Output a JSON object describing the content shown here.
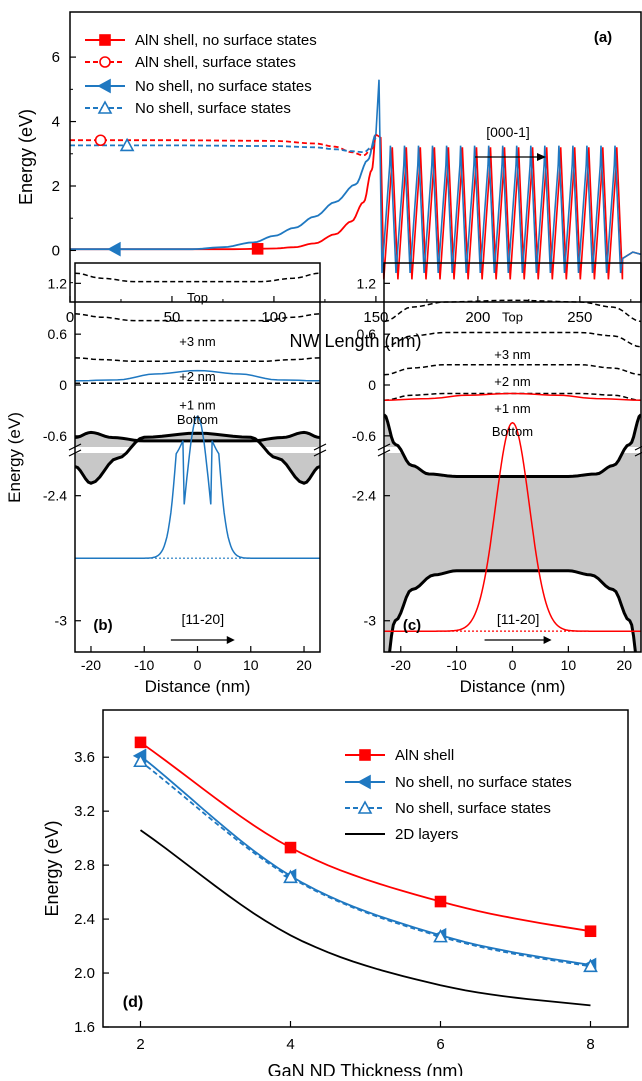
{
  "chart_data": [
    {
      "panel": "(a)",
      "type": "line",
      "xlabel": "NW Length (nm)",
      "ylabel": "Energy (eV)",
      "xlim": [
        0,
        280
      ],
      "ylim": [
        -1.6,
        7.4
      ],
      "xticks": [
        0,
        50,
        100,
        150,
        200,
        250
      ],
      "yticks": [
        0,
        2,
        4,
        6
      ],
      "annotation": "[000-1]",
      "legend_position": "top-left",
      "series": [
        {
          "name": "AlN shell, no surface states",
          "color": "#ff0000",
          "dash": "solid",
          "marker": "square",
          "x": [
            0,
            40,
            80,
            100,
            110,
            120,
            130,
            138,
            144,
            148,
            150
          ],
          "y": [
            0.04,
            0.04,
            0.04,
            0.06,
            0.1,
            0.22,
            0.5,
            0.9,
            1.5,
            2.5,
            3.6
          ]
        },
        {
          "name": "AlN shell, surface states",
          "color": "#ff0000",
          "dash": "dashed",
          "marker": "circle",
          "x": [
            0,
            50,
            100,
            120,
            130,
            138,
            144,
            148,
            150
          ],
          "y": [
            3.42,
            3.42,
            3.4,
            3.32,
            3.22,
            3.05,
            2.95,
            3.15,
            3.5
          ]
        },
        {
          "name": "No shell, no surface states",
          "color": "#1f78c1",
          "dash": "solid",
          "marker": "triangle-left",
          "x": [
            0,
            60,
            75,
            90,
            100,
            110,
            120,
            130,
            140,
            146,
            150
          ],
          "y": [
            0.04,
            0.04,
            0.1,
            0.25,
            0.45,
            0.7,
            1.05,
            1.5,
            2.05,
            2.8,
            3.6
          ]
        },
        {
          "name": "No shell, surface states",
          "color": "#1f78c1",
          "dash": "dashed",
          "marker": "triangle-up",
          "x": [
            0,
            50,
            100,
            120,
            130,
            138,
            144,
            148,
            150
          ],
          "y": [
            3.26,
            3.26,
            3.24,
            3.2,
            3.14,
            3.08,
            3.05,
            3.2,
            3.5
          ]
        }
      ],
      "superlattice": {
        "x_start": 151,
        "x_end": 268,
        "periods": 17,
        "peak_blue": 3.25,
        "trough_blue": -0.7,
        "peak_red": 3.2,
        "trough_red": -0.9,
        "spike": 5.3
      }
    },
    {
      "panel": "(b)",
      "type": "line",
      "xlabel": "Distance (nm)",
      "ylabel": "Energy (eV)",
      "xlim": [
        -23,
        23
      ],
      "xticks": [
        -20,
        -10,
        0,
        10,
        20
      ],
      "yticks_upper": [
        -0.6,
        0.0,
        0.6,
        1.2
      ],
      "yticks_lower": [
        -2.4,
        -3.0
      ],
      "curve_labels": [
        "Top",
        "+3 nm",
        "+2 nm",
        "+1 nm",
        "Bottom"
      ],
      "annotation": "[11-20]",
      "series": [
        {
          "name": "Top",
          "color": "#000000",
          "dash": "dashed",
          "x": [
            -23,
            -18,
            -12,
            0,
            12,
            18,
            23
          ],
          "y": [
            1.32,
            1.26,
            1.22,
            1.22,
            1.22,
            1.26,
            1.32
          ]
        },
        {
          "name": "+3 nm",
          "color": "#000000",
          "dash": "dashed",
          "x": [
            -23,
            -18,
            -12,
            0,
            12,
            18,
            23
          ],
          "y": [
            0.84,
            0.8,
            0.76,
            0.76,
            0.76,
            0.8,
            0.84
          ]
        },
        {
          "name": "+2 nm",
          "color": "#000000",
          "dash": "dashed",
          "x": [
            -23,
            -18,
            -12,
            0,
            12,
            18,
            23
          ],
          "y": [
            0.32,
            0.3,
            0.28,
            0.28,
            0.28,
            0.3,
            0.32
          ]
        },
        {
          "name": "+1 nm",
          "color": "#000000",
          "dash": "dashed",
          "x": [
            -23,
            23
          ],
          "y": [
            0.02,
            0.02
          ]
        },
        {
          "name": "Bottom upper",
          "color": "#000000",
          "dash": "solid",
          "x": [
            -23,
            -20,
            -16,
            -10,
            0,
            10,
            16,
            20,
            23
          ],
          "y": [
            -0.62,
            -0.56,
            -0.62,
            -0.66,
            -0.66,
            -0.66,
            -0.62,
            -0.56,
            -0.62
          ]
        },
        {
          "name": "Bottom lower",
          "color": "#000000",
          "dash": "solid",
          "x": [
            -23,
            -20,
            -15,
            -10,
            0,
            10,
            15,
            20,
            23
          ],
          "y": [
            -2.26,
            -2.34,
            -2.22,
            -2.12,
            -2.1,
            -2.12,
            -2.22,
            -2.34,
            -2.26
          ]
        },
        {
          "name": "upper level",
          "color": "#1f78c1",
          "dash": "solid",
          "x": [
            -23,
            -15,
            -8,
            0,
            8,
            15,
            23
          ],
          "y": [
            0.05,
            0.06,
            0.13,
            0.17,
            0.13,
            0.06,
            0.05
          ]
        },
        {
          "name": "lower level",
          "color": "#1f78c1",
          "dash": "solid",
          "peak_x": 0,
          "peak_y": -0.37,
          "base_y": -2.7,
          "width": 2.3
        }
      ]
    },
    {
      "panel": "(c)",
      "type": "line",
      "xlabel": "Distance (nm)",
      "ylabel": "",
      "xlim": [
        -23,
        23
      ],
      "xticks": [
        -20,
        -10,
        0,
        10,
        20
      ],
      "yticks_upper": [
        -0.6,
        0.0,
        0.6,
        1.2
      ],
      "yticks_lower": [
        -2.4,
        -3.0
      ],
      "curve_labels": [
        "Top",
        "+3 nm",
        "+2 nm",
        "+1 nm",
        "Bottom"
      ],
      "annotation": "[11-20]",
      "series": [
        {
          "name": "Top",
          "color": "#000000",
          "dash": "dashed",
          "x": [
            -23,
            -18,
            -12,
            0,
            12,
            18,
            23
          ],
          "y": [
            0.75,
            0.92,
            0.98,
            1.0,
            0.98,
            0.92,
            0.75
          ]
        },
        {
          "name": "+3 nm",
          "color": "#000000",
          "dash": "dashed",
          "x": [
            -23,
            -18,
            -12,
            0,
            12,
            18,
            23
          ],
          "y": [
            0.45,
            0.58,
            0.62,
            0.62,
            0.62,
            0.58,
            0.45
          ]
        },
        {
          "name": "+2 nm",
          "color": "#000000",
          "dash": "dashed",
          "x": [
            -23,
            -18,
            -12,
            0,
            12,
            18,
            23
          ],
          "y": [
            0.12,
            0.2,
            0.24,
            0.24,
            0.24,
            0.2,
            0.12
          ]
        },
        {
          "name": "+1 nm",
          "color": "#000000",
          "dash": "dashed",
          "x": [
            -23,
            -18,
            -12,
            0,
            12,
            18,
            23
          ],
          "y": [
            -0.18,
            -0.12,
            -0.1,
            -0.1,
            -0.1,
            -0.12,
            -0.18
          ]
        },
        {
          "name": "Bottom upper",
          "color": "#000000",
          "dash": "solid",
          "x": [
            -23,
            -21,
            -18,
            -15,
            -10,
            0,
            10,
            15,
            18,
            21,
            23
          ],
          "y": [
            -0.35,
            -0.7,
            -0.95,
            -1.05,
            -1.08,
            -1.08,
            -1.08,
            -1.05,
            -0.95,
            -0.7,
            -0.35
          ]
        },
        {
          "name": "Bottom lower",
          "color": "#000000",
          "dash": "solid",
          "x": [
            -23,
            -21,
            -18,
            -14,
            -10,
            0,
            10,
            14,
            18,
            21,
            23
          ],
          "y": [
            -3.3,
            -3.0,
            -2.85,
            -2.78,
            -2.76,
            -2.76,
            -2.76,
            -2.78,
            -2.85,
            -3.0,
            -3.3
          ]
        },
        {
          "name": "upper level",
          "color": "#ff0000",
          "dash": "solid",
          "x": [
            -23,
            -15,
            -8,
            0,
            8,
            15,
            23
          ],
          "y": [
            -0.18,
            -0.16,
            -0.12,
            -0.1,
            -0.12,
            -0.16,
            -0.18
          ]
        },
        {
          "name": "lower level",
          "color": "#ff0000",
          "dash": "solid",
          "peak_x": 0,
          "peak_y": -2.05,
          "base_y": -3.05,
          "width": 3.0
        }
      ]
    },
    {
      "panel": "(d)",
      "type": "line",
      "xlabel": "GaN ND Thickness (nm)",
      "ylabel": "Energy (eV)",
      "xlim": [
        1.5,
        8.5
      ],
      "ylim": [
        1.6,
        3.95
      ],
      "xticks": [
        2,
        4,
        6,
        8
      ],
      "yticks": [
        1.6,
        2.0,
        2.4,
        2.8,
        3.2,
        3.6
      ],
      "legend_position": "top-right",
      "x": [
        2,
        4,
        6,
        8
      ],
      "series": [
        {
          "name": "AlN shell",
          "color": "#ff0000",
          "dash": "solid",
          "marker": "square",
          "values": [
            3.71,
            2.93,
            2.53,
            2.31
          ]
        },
        {
          "name": "No shell, no surface states",
          "color": "#1f78c1",
          "dash": "solid",
          "marker": "triangle-left",
          "values": [
            3.61,
            2.72,
            2.28,
            2.06
          ]
        },
        {
          "name": "No shell, surface states",
          "color": "#1f78c1",
          "dash": "dashed",
          "marker": "triangle-up",
          "values": [
            3.57,
            2.71,
            2.27,
            2.05
          ]
        },
        {
          "name": "2D layers",
          "color": "#000000",
          "dash": "solid",
          "marker": "none",
          "values": [
            3.06,
            2.28,
            1.91,
            1.76
          ]
        }
      ]
    }
  ]
}
